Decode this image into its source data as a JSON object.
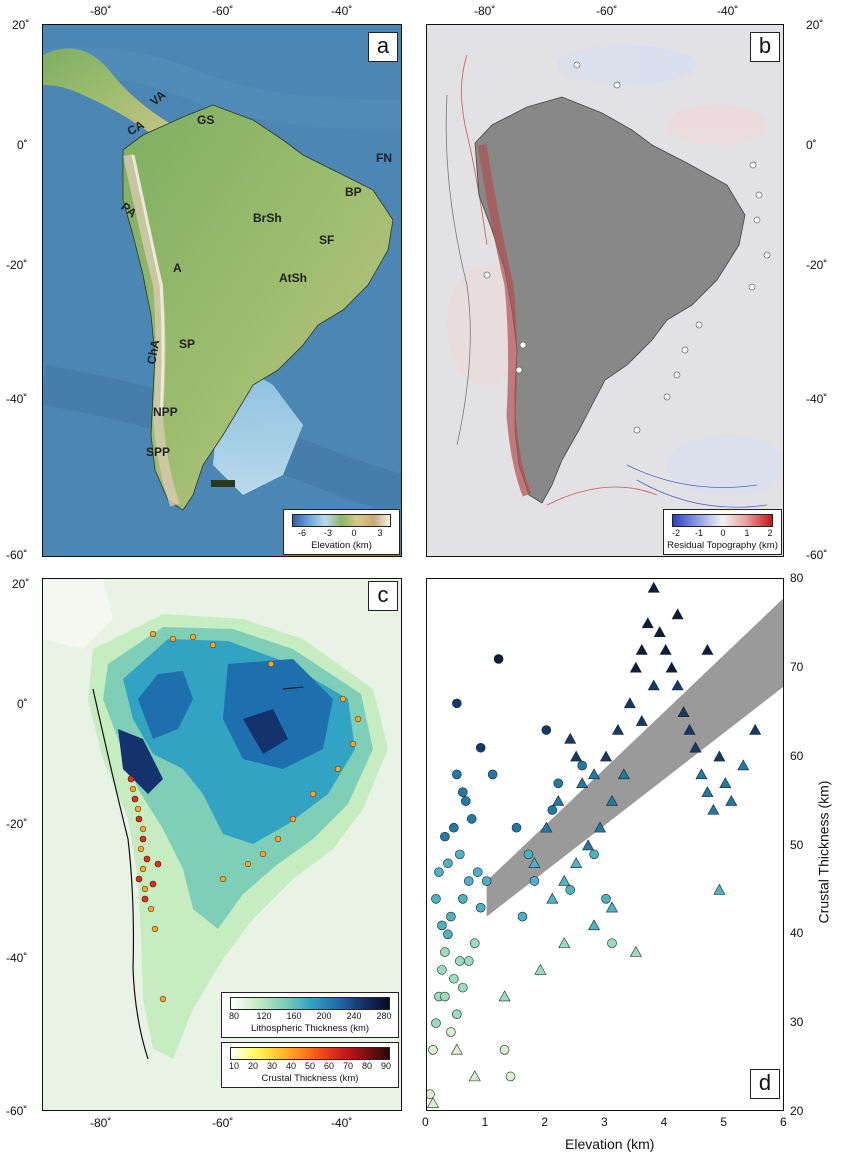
{
  "panels": {
    "a": {
      "letter": "a"
    },
    "b": {
      "letter": "b"
    },
    "c": {
      "letter": "c"
    },
    "d": {
      "letter": "d"
    }
  },
  "map_axes": {
    "lon_ticks": [
      "-80˚",
      "-60˚",
      "-40˚"
    ],
    "lat_ticks_left": [
      "20˚",
      "0˚",
      "-20˚",
      "-40˚",
      "-60˚"
    ],
    "lat_ticks_right": [
      "20˚",
      "0˚",
      "-20˚",
      "-40˚",
      "-60˚"
    ],
    "lat_ticks_left_c": [
      "20˚",
      "0˚",
      "-20˚",
      "-40˚",
      "-60˚"
    ]
  },
  "region_labels": {
    "CA": "CA",
    "VA": "VA",
    "GS": "GS",
    "FN": "FN",
    "BP": "BP",
    "PA": "PA",
    "BrSh": "BrSh",
    "SF": "SF",
    "A": "A",
    "AtSh": "AtSh",
    "ChA": "ChA",
    "SP": "SP",
    "NPP": "NPP",
    "SPP": "SPP"
  },
  "legend_a": {
    "title": "Elevation (km)",
    "ticks": [
      "-6",
      "-3",
      "0",
      "3"
    ],
    "colors": [
      "#3a5fa8",
      "#6aa6d6",
      "#b8dcf0",
      "#8bb46a",
      "#d6c98a",
      "#c9a77a",
      "#f5f0e8"
    ]
  },
  "legend_b": {
    "title": "Residual Topography (km)",
    "ticks": [
      "-2",
      "-1",
      "0",
      "1",
      "2"
    ],
    "colors": [
      "#2b3fc0",
      "#8f9be6",
      "#f2f2f2",
      "#e89a9a",
      "#c01818"
    ]
  },
  "legend_c1": {
    "title": "Lithospheric Thickness (km)",
    "ticks": [
      "80",
      "120",
      "160",
      "200",
      "240",
      "280"
    ],
    "colors": [
      "#ffffff",
      "#c7ecc1",
      "#7fcfb8",
      "#33a3c4",
      "#1e6fae",
      "#14326e",
      "#060d22"
    ]
  },
  "legend_c2": {
    "title": "Crustal Thickness (km)",
    "ticks": [
      "10",
      "20",
      "30",
      "40",
      "50",
      "60",
      "70",
      "80",
      "90"
    ],
    "colors": [
      "#ffffff",
      "#ffff66",
      "#ffcc33",
      "#ff8c1a",
      "#f04a1a",
      "#c81a1a",
      "#7a1010",
      "#2a0808"
    ]
  },
  "chart_data": {
    "type": "scatter",
    "xlabel": "Elevation (km)",
    "ylabel": "Crustal Thickness (km)",
    "xlim": [
      0,
      6
    ],
    "ylim": [
      20,
      80
    ],
    "xticks": [
      "0",
      "1",
      "2",
      "3",
      "4",
      "5",
      "6"
    ],
    "yticks": [
      "20",
      "30",
      "40",
      "50",
      "60",
      "70",
      "80"
    ],
    "trend_band": {
      "x": [
        1.0,
        6.0
      ],
      "y_lower": [
        42,
        68
      ],
      "y_upper": [
        46,
        78
      ]
    },
    "series": [
      {
        "marker": "circle",
        "points": [
          [
            0.05,
            22
          ],
          [
            0.1,
            27
          ],
          [
            0.15,
            30
          ],
          [
            0.2,
            33
          ],
          [
            0.25,
            36
          ],
          [
            0.3,
            38
          ],
          [
            0.35,
            40
          ],
          [
            0.4,
            42
          ],
          [
            0.45,
            35
          ],
          [
            0.5,
            31
          ],
          [
            0.55,
            37
          ],
          [
            0.6,
            44
          ],
          [
            0.7,
            46
          ],
          [
            0.8,
            39
          ],
          [
            0.9,
            43
          ],
          [
            1.0,
            46
          ],
          [
            0.2,
            47
          ],
          [
            0.3,
            51
          ],
          [
            0.5,
            58
          ],
          [
            0.6,
            56
          ],
          [
            0.9,
            61
          ],
          [
            1.1,
            58
          ],
          [
            1.2,
            71
          ],
          [
            0.5,
            66
          ],
          [
            1.5,
            52
          ],
          [
            1.8,
            46
          ],
          [
            2.0,
            63
          ],
          [
            2.2,
            57
          ],
          [
            2.4,
            45
          ],
          [
            2.6,
            59
          ],
          [
            2.8,
            49
          ],
          [
            3.0,
            44
          ],
          [
            3.1,
            39
          ],
          [
            0.3,
            33
          ],
          [
            0.4,
            29
          ],
          [
            0.6,
            34
          ],
          [
            0.7,
            37
          ],
          [
            1.3,
            27
          ],
          [
            1.4,
            24
          ],
          [
            0.15,
            44
          ],
          [
            0.25,
            41
          ],
          [
            0.35,
            48
          ],
          [
            0.45,
            52
          ],
          [
            0.55,
            49
          ],
          [
            0.65,
            55
          ],
          [
            0.75,
            53
          ],
          [
            0.85,
            47
          ],
          [
            1.6,
            42
          ],
          [
            1.7,
            49
          ],
          [
            2.1,
            54
          ]
        ]
      },
      {
        "marker": "triangle",
        "points": [
          [
            0.1,
            21
          ],
          [
            0.5,
            27
          ],
          [
            0.8,
            24
          ],
          [
            1.3,
            33
          ],
          [
            1.8,
            48
          ],
          [
            2.0,
            52
          ],
          [
            2.2,
            55
          ],
          [
            2.4,
            62
          ],
          [
            2.5,
            60
          ],
          [
            2.6,
            57
          ],
          [
            2.8,
            58
          ],
          [
            3.0,
            60
          ],
          [
            3.2,
            63
          ],
          [
            3.4,
            66
          ],
          [
            3.5,
            70
          ],
          [
            3.6,
            72
          ],
          [
            3.7,
            75
          ],
          [
            3.8,
            79
          ],
          [
            3.9,
            74
          ],
          [
            4.0,
            72
          ],
          [
            4.1,
            70
          ],
          [
            4.2,
            68
          ],
          [
            4.3,
            65
          ],
          [
            4.4,
            63
          ],
          [
            4.5,
            61
          ],
          [
            4.6,
            58
          ],
          [
            4.7,
            56
          ],
          [
            4.8,
            54
          ],
          [
            4.9,
            60
          ],
          [
            5.0,
            57
          ],
          [
            5.1,
            55
          ],
          [
            5.3,
            59
          ],
          [
            5.5,
            63
          ],
          [
            4.9,
            45
          ],
          [
            3.1,
            43
          ],
          [
            3.5,
            38
          ],
          [
            2.8,
            41
          ],
          [
            2.3,
            39
          ],
          [
            1.9,
            36
          ],
          [
            4.7,
            72
          ],
          [
            4.2,
            76
          ],
          [
            3.8,
            68
          ],
          [
            3.6,
            64
          ],
          [
            3.3,
            58
          ],
          [
            3.1,
            55
          ],
          [
            2.9,
            52
          ],
          [
            2.7,
            50
          ],
          [
            2.5,
            48
          ],
          [
            2.3,
            46
          ],
          [
            2.1,
            44
          ]
        ]
      }
    ]
  }
}
